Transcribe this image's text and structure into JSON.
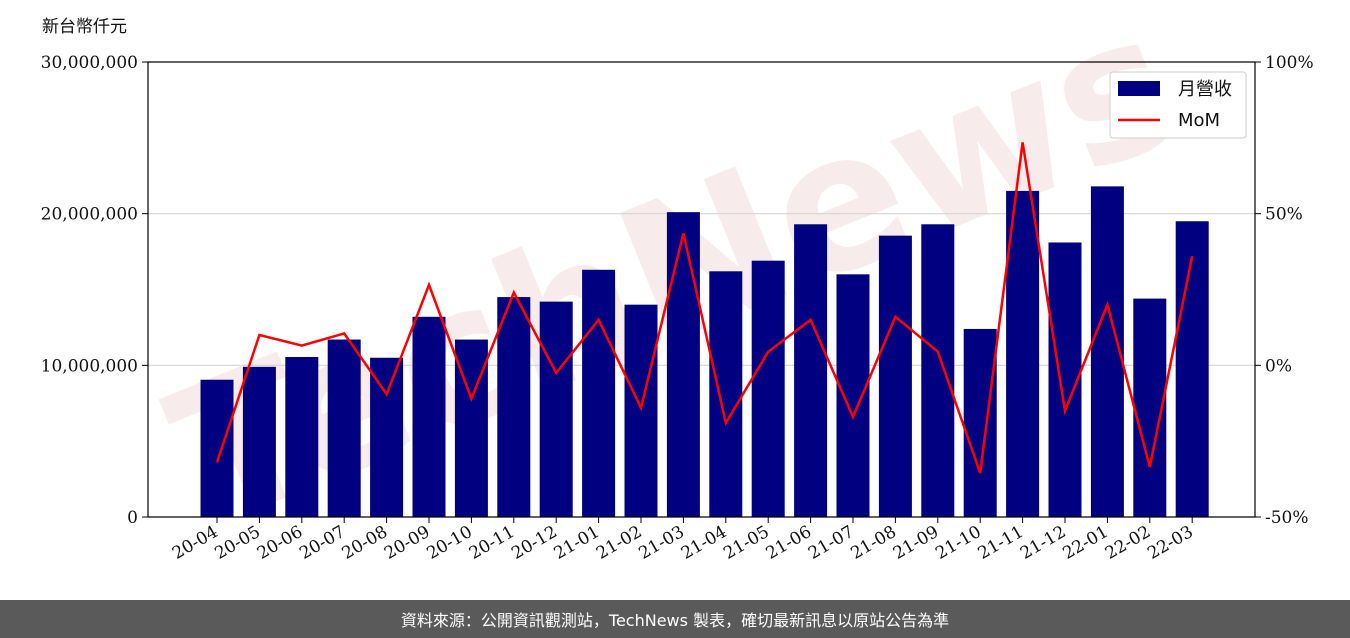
{
  "chart_data": {
    "type": "bar",
    "y_unit_label": "新台幣仟元",
    "categories": [
      "20-04",
      "20-05",
      "20-06",
      "20-07",
      "20-08",
      "20-09",
      "20-10",
      "20-11",
      "20-12",
      "21-01",
      "21-02",
      "21-03",
      "21-04",
      "21-05",
      "21-06",
      "21-07",
      "21-08",
      "21-09",
      "21-10",
      "21-11",
      "21-12",
      "22-01",
      "22-02",
      "22-03"
    ],
    "series": [
      {
        "name": "月營收",
        "type": "bar",
        "axis": "left",
        "color": "#000080",
        "values": [
          9050000,
          9900000,
          10550000,
          11700000,
          10500000,
          13200000,
          11700000,
          14500000,
          14200000,
          16300000,
          14000000,
          20100000,
          16200000,
          16900000,
          19300000,
          16000000,
          18550000,
          19300000,
          12400000,
          21500000,
          18100000,
          21800000,
          14400000,
          19500000
        ]
      },
      {
        "name": "MoM",
        "type": "line",
        "axis": "right",
        "color": "#ff0000",
        "values": [
          -32,
          10,
          6.5,
          10.5,
          -9.5,
          26.5,
          -11,
          24,
          -2.5,
          15,
          -14,
          43.5,
          -19,
          4.5,
          15,
          -17,
          16,
          4.5,
          -35.5,
          73.5,
          -15,
          20,
          -33.5,
          36
        ]
      }
    ],
    "y_left_ticks": [
      "0",
      "10,000,000",
      "20,000,000",
      "30,000,000"
    ],
    "y_left_range": [
      0,
      30000000
    ],
    "y_right_ticks": [
      "-50%",
      "0%",
      "50%",
      "100%"
    ],
    "y_right_range": [
      -50,
      100
    ],
    "grid": "horizontal",
    "legend_position": "top-right"
  },
  "watermark": "TechNews",
  "footer": {
    "text": "資料來源：公開資訊觀測站，TechNews 製表，確切最新訊息以原站公告為準"
  }
}
